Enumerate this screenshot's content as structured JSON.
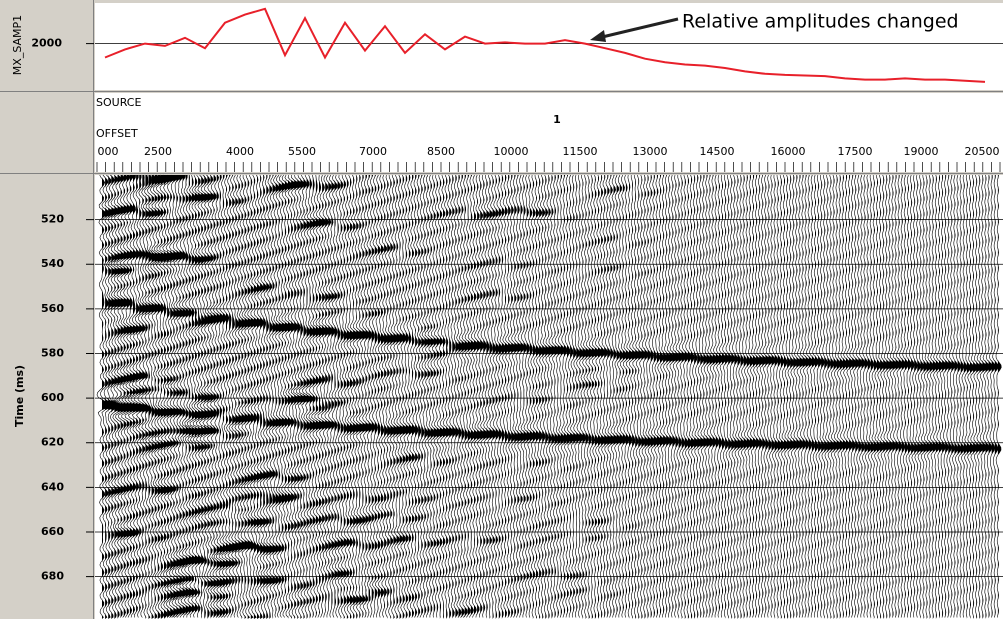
{
  "top_panel": {
    "axis_label": "MX_SAMP1",
    "ylim": [
      1600,
      2350
    ],
    "yticks": [
      2000
    ],
    "trace": {
      "color": "#e8202a",
      "values": [
        1880,
        1950,
        2000,
        1980,
        2050,
        1960,
        2180,
        2250,
        2300,
        1900,
        2220,
        1880,
        2180,
        1940,
        2150,
        1920,
        2080,
        1950,
        2060,
        2000,
        2010,
        2000,
        2000,
        2030,
        2000,
        1960,
        1920,
        1870,
        1840,
        1820,
        1810,
        1790,
        1760,
        1740,
        1730,
        1725,
        1720,
        1700,
        1690,
        1690,
        1700,
        1690,
        1690,
        1680,
        1670
      ]
    },
    "annotation": "Relative amplitudes changed"
  },
  "header": {
    "source_label": "SOURCE",
    "source_value": "1",
    "offset_label": "OFFSET",
    "offset_ticks": [
      "000",
      "2500",
      "4000",
      "5500",
      "7000",
      "8500",
      "10000",
      "11500",
      "13000",
      "14500",
      "16000",
      "17500",
      "19000",
      "20500"
    ]
  },
  "seismic": {
    "axis_label": "Time (ms)",
    "ylim": [
      500,
      699
    ],
    "yticks": [
      520,
      540,
      560,
      580,
      600,
      620,
      640,
      660,
      680
    ],
    "grid": true
  }
}
